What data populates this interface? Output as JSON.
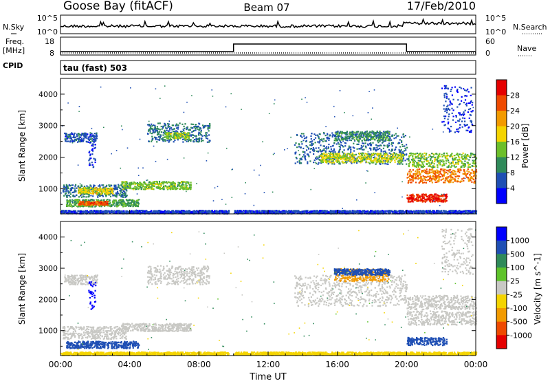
{
  "header": {
    "station": "Goose Bay (fitACF)",
    "beam": "Beam 07",
    "date": "17/Feb/2010"
  },
  "small_panels": {
    "nsky_label": "N.Sky",
    "nsearch_label": "N.Search",
    "nsky_ticks": [
      "10^5",
      "10^0"
    ],
    "nsearch_ticks": [
      "10^5",
      "10^0"
    ],
    "freq_label": "Freq.",
    "freq_unit": "[MHz]",
    "freq_ticks": [
      "18",
      "8"
    ],
    "nave_label": "Nave",
    "nave_ticks": [
      "60",
      "0"
    ],
    "cpid_label": "CPID",
    "cpid_value": "tau (fast) 503"
  },
  "colors": {
    "trace": "#000000",
    "power_scale": [
      "#0000ff",
      "#1f4fb4",
      "#2f8a5a",
      "#6cbf2a",
      "#f4d400",
      "#f29a00",
      "#ef4a00",
      "#e50000"
    ],
    "velocity_scale": [
      "#0000ff",
      "#1f4fb4",
      "#2f8a5a",
      "#5ec32a",
      "#c8c8c4",
      "#f4d400",
      "#f29a00",
      "#ef4a00",
      "#e50000"
    ]
  },
  "chart_data": [
    {
      "type": "heatmap",
      "title": "Power",
      "ylabel": "Slant Range [km]",
      "colorbar_label": "Power [dB]",
      "colorbar_ticks": [
        "28",
        "24",
        "20",
        "16",
        "12",
        "8",
        "4"
      ],
      "y_ticks": [
        "4000",
        "3000",
        "2000",
        "1000"
      ],
      "ylim": [
        200,
        4500
      ],
      "xlim": [
        "00:00",
        "24:00"
      ],
      "regions": [
        {
          "t0": 0.2,
          "t1": 2.1,
          "r0": 2500,
          "r1": 2800,
          "value": 6
        },
        {
          "t0": 1.6,
          "t1": 2.0,
          "r0": 1700,
          "r1": 2600,
          "value": 5
        },
        {
          "t0": 5.0,
          "t1": 8.6,
          "r0": 2500,
          "r1": 3100,
          "value": 8
        },
        {
          "t0": 6.0,
          "t1": 7.4,
          "r0": 2600,
          "r1": 2800,
          "value": 14
        },
        {
          "t0": 0.1,
          "t1": 3.8,
          "r0": 750,
          "r1": 1150,
          "value": 8
        },
        {
          "t0": 1.0,
          "t1": 3.0,
          "r0": 850,
          "r1": 1050,
          "value": 18
        },
        {
          "t0": 3.5,
          "t1": 7.5,
          "r0": 1000,
          "r1": 1250,
          "value": 14
        },
        {
          "t0": 0.3,
          "t1": 4.5,
          "r0": 450,
          "r1": 680,
          "value": 12
        },
        {
          "t0": 1.0,
          "t1": 2.7,
          "r0": 500,
          "r1": 620,
          "value": 26
        },
        {
          "t0": 0.0,
          "t1": 9.7,
          "r0": 230,
          "r1": 330,
          "value": 5
        },
        {
          "t0": 13.5,
          "t1": 20.0,
          "r0": 1800,
          "r1": 2800,
          "value": 7
        },
        {
          "t0": 15.0,
          "t1": 19.8,
          "r0": 1850,
          "r1": 2150,
          "value": 16
        },
        {
          "t0": 15.8,
          "t1": 19.0,
          "r0": 2550,
          "r1": 2850,
          "value": 10
        },
        {
          "t0": 20.0,
          "t1": 24.0,
          "r0": 1700,
          "r1": 2150,
          "value": 14
        },
        {
          "t0": 20.0,
          "t1": 24.0,
          "r0": 1200,
          "r1": 1650,
          "value": 24
        },
        {
          "t0": 20.0,
          "t1": 22.3,
          "r0": 600,
          "r1": 850,
          "value": 29
        },
        {
          "t0": 22.0,
          "t1": 23.8,
          "r0": 2800,
          "r1": 4300,
          "value": 5
        },
        {
          "t0": 10.0,
          "t1": 24.0,
          "r0": 230,
          "r1": 330,
          "value": 5
        }
      ]
    },
    {
      "type": "heatmap",
      "title": "Velocity",
      "ylabel": "Slant Range [km]",
      "xlabel": "Time UT",
      "colorbar_label": "Velocity [m s^-1]",
      "colorbar_ticks": [
        "1000",
        "500",
        "100",
        "25",
        "-25",
        "-100",
        "-500",
        "-1000"
      ],
      "y_ticks": [
        "4000",
        "3000",
        "2000",
        "1000"
      ],
      "x_ticks": [
        "00:00",
        "04:00",
        "08:00",
        "12:00",
        "16:00",
        "20:00",
        "00:00"
      ],
      "ylim": [
        200,
        4500
      ],
      "xlim": [
        "00:00",
        "24:00"
      ],
      "regions": [
        {
          "t0": 0.2,
          "t1": 2.1,
          "r0": 2500,
          "r1": 2800,
          "value": 0
        },
        {
          "t0": 1.6,
          "t1": 2.0,
          "r0": 1700,
          "r1": 2600,
          "value": 800
        },
        {
          "t0": 5.0,
          "t1": 8.6,
          "r0": 2500,
          "r1": 3100,
          "value": 0
        },
        {
          "t0": 0.1,
          "t1": 3.8,
          "r0": 750,
          "r1": 1150,
          "value": 0
        },
        {
          "t0": 3.5,
          "t1": 7.5,
          "r0": 1000,
          "r1": 1250,
          "value": 0
        },
        {
          "t0": 0.3,
          "t1": 4.5,
          "r0": 450,
          "r1": 680,
          "value": 150
        },
        {
          "t0": 0.0,
          "t1": 9.7,
          "r0": 230,
          "r1": 330,
          "value": -60
        },
        {
          "t0": 13.5,
          "t1": 20.0,
          "r0": 1800,
          "r1": 2800,
          "value": 0
        },
        {
          "t0": 15.8,
          "t1": 19.0,
          "r0": 2600,
          "r1": 3000,
          "value": -300
        },
        {
          "t0": 15.8,
          "t1": 19.0,
          "r0": 2800,
          "r1": 3000,
          "value": 200
        },
        {
          "t0": 20.0,
          "t1": 24.0,
          "r0": 1700,
          "r1": 2150,
          "value": 0
        },
        {
          "t0": 20.0,
          "t1": 24.0,
          "r0": 1200,
          "r1": 1650,
          "value": 0
        },
        {
          "t0": 20.0,
          "t1": 22.3,
          "r0": 550,
          "r1": 800,
          "value": 150
        },
        {
          "t0": 22.0,
          "t1": 23.8,
          "r0": 2800,
          "r1": 4300,
          "value": 0
        },
        {
          "t0": 10.0,
          "t1": 24.0,
          "r0": 230,
          "r1": 330,
          "value": -60
        }
      ]
    }
  ]
}
